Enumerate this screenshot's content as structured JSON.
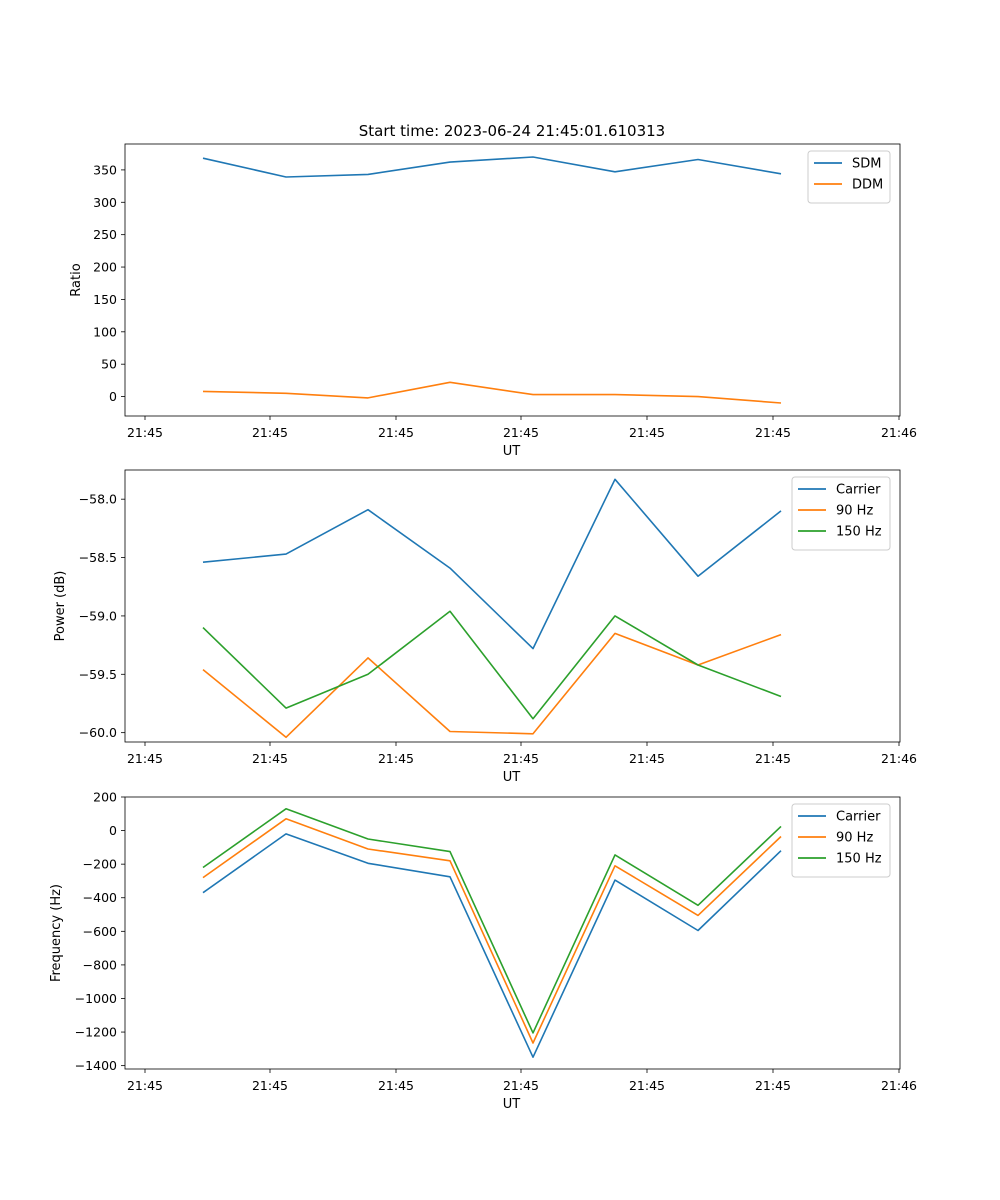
{
  "title": "Start time: 2023-06-24 21:45:01.610313",
  "chart_data": [
    {
      "type": "line",
      "ylabel": "Ratio",
      "xlabel": "UT",
      "x_tick_labels": [
        "21:45",
        "21:45",
        "21:45",
        "21:45",
        "21:45",
        "21:45",
        "21:45",
        "21:46"
      ],
      "y_ticks": [
        0,
        50,
        100,
        150,
        200,
        250,
        300,
        350
      ],
      "ylim": [
        -30,
        390
      ],
      "legend": "top-right",
      "series": [
        {
          "name": "SDM",
          "color": "#1f77b4",
          "values": [
            368,
            339,
            343,
            362,
            370,
            347,
            366,
            344
          ]
        },
        {
          "name": "DDM",
          "color": "#ff7f0e",
          "values": [
            8,
            5,
            -2,
            22,
            3,
            3,
            0,
            -10
          ]
        }
      ]
    },
    {
      "type": "line",
      "ylabel": "Power (dB)",
      "xlabel": "UT",
      "x_tick_labels": [
        "21:45",
        "21:45",
        "21:45",
        "21:45",
        "21:45",
        "21:45",
        "21:45",
        "21:46"
      ],
      "y_ticks": [
        -58.0,
        -58.5,
        -59.0,
        -59.5,
        -60.0
      ],
      "y_tick_labels": [
        "−58.0",
        "−58.5",
        "−59.0",
        "−59.5",
        "−60.0"
      ],
      "ylim": [
        -60.08,
        -57.75
      ],
      "legend": "top-right",
      "series": [
        {
          "name": "Carrier",
          "color": "#1f77b4",
          "values": [
            -58.54,
            -58.47,
            -58.09,
            -58.59,
            -59.28,
            -57.83,
            -58.66,
            -58.1
          ]
        },
        {
          "name": "90 Hz",
          "color": "#ff7f0e",
          "values": [
            -59.46,
            -60.04,
            -59.36,
            -59.99,
            -60.01,
            -59.15,
            -59.42,
            -59.16
          ]
        },
        {
          "name": "150 Hz",
          "color": "#2ca02c",
          "values": [
            -59.1,
            -59.79,
            -59.5,
            -58.96,
            -59.88,
            -59.0,
            -59.42,
            -59.69
          ]
        }
      ]
    },
    {
      "type": "line",
      "ylabel": "Frequency (Hz)",
      "xlabel": "UT",
      "x_tick_labels": [
        "21:45",
        "21:45",
        "21:45",
        "21:45",
        "21:45",
        "21:45",
        "21:45",
        "21:46"
      ],
      "y_ticks": [
        200,
        0,
        -200,
        -400,
        -600,
        -800,
        -1000,
        -1200,
        -1400
      ],
      "y_tick_labels": [
        "200",
        "0",
        "−200",
        "−400",
        "−600",
        "−800",
        "−1000",
        "−1200",
        "−1400"
      ],
      "ylim": [
        -1420,
        200
      ],
      "legend": "top-right",
      "series": [
        {
          "name": "Carrier",
          "color": "#1f77b4",
          "values": [
            -370,
            -20,
            -195,
            -275,
            -1350,
            -295,
            -595,
            -120
          ]
        },
        {
          "name": "90 Hz",
          "color": "#ff7f0e",
          "values": [
            -280,
            70,
            -110,
            -180,
            -1265,
            -210,
            -505,
            -35
          ]
        },
        {
          "name": "150 Hz",
          "color": "#2ca02c",
          "values": [
            -220,
            130,
            -50,
            -125,
            -1205,
            -145,
            -445,
            25
          ]
        }
      ]
    }
  ]
}
